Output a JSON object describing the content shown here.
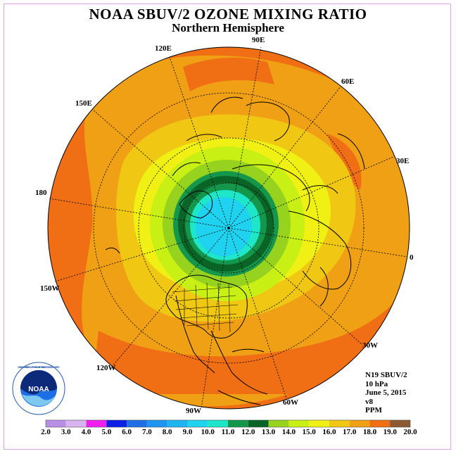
{
  "title": "NOAA SBUV/2 OZONE MIXING RATIO",
  "subtitle": "Northern Hemisphere",
  "longitude_labels": [
    "90E",
    "60E",
    "30E",
    "0",
    "30W",
    "60W",
    "90W",
    "120W",
    "150W",
    "180",
    "150E",
    "120E"
  ],
  "info": {
    "instrument": "N19 SBUV/2",
    "pressure": "10 hPa",
    "date": "June 5, 2015",
    "version": "v8",
    "units": "PPM"
  },
  "legend": {
    "ticks": [
      "2.0",
      "3.0",
      "4.0",
      "5.0",
      "6.0",
      "7.0",
      "8.0",
      "9.0",
      "10.0",
      "11.0",
      "12.0",
      "13.0",
      "14.0",
      "15.0",
      "16.0",
      "17.0",
      "18.0",
      "19.0",
      "20.0"
    ],
    "colors": [
      "#b98ee6",
      "#d9b3f0",
      "#ee1eee",
      "#0d1ee6",
      "#1e6ee6",
      "#1e96f0",
      "#1eb4f0",
      "#1ed2f0",
      "#1ee6c8",
      "#14964b",
      "#0a6428",
      "#96d21e",
      "#c8f014",
      "#f0f014",
      "#f0c814",
      "#f0a014",
      "#f06e14",
      "#e61414",
      "#8c5a32"
    ]
  },
  "logo": {
    "text": "NOAA",
    "ring_text": "NATIONAL OCEANIC AND ATMOSPHERIC ADMINISTRATION · U.S. DEPARTMENT OF COMMERCE"
  },
  "colors": {
    "far_field": "#f06e14",
    "orange": "#f0a014",
    "light_orange": "#f0c814",
    "yellow": "#f0f014",
    "light_green": "#c8f014",
    "green": "#96d21e",
    "dark_green": "#0a6428",
    "med_green": "#14964b",
    "cyan": "#1ee6c8",
    "light_blue": "#1ed2f0"
  }
}
